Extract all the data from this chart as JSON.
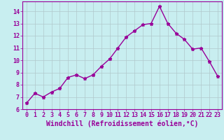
{
  "x": [
    0,
    1,
    2,
    3,
    4,
    5,
    6,
    7,
    8,
    9,
    10,
    11,
    12,
    13,
    14,
    15,
    16,
    17,
    18,
    19,
    20,
    21,
    22,
    23
  ],
  "y": [
    6.5,
    7.3,
    7.0,
    7.4,
    7.7,
    8.6,
    8.8,
    8.5,
    8.8,
    9.5,
    10.1,
    11.0,
    11.9,
    12.4,
    12.9,
    13.0,
    14.4,
    13.0,
    12.2,
    11.7,
    10.9,
    11.0,
    9.9,
    8.7
  ],
  "line_color": "#990099",
  "marker": "*",
  "marker_size": 3.5,
  "bg_color": "#c8eef0",
  "grid_color": "#b0c8cc",
  "axis_label_color": "#990099",
  "tick_color": "#990099",
  "xlabel": "Windchill (Refroidissement éolien,°C)",
  "xlim": [
    -0.5,
    23.5
  ],
  "ylim": [
    6,
    14.8
  ],
  "yticks": [
    6,
    7,
    8,
    9,
    10,
    11,
    12,
    13,
    14
  ],
  "xticks": [
    0,
    1,
    2,
    3,
    4,
    5,
    6,
    7,
    8,
    9,
    10,
    11,
    12,
    13,
    14,
    15,
    16,
    17,
    18,
    19,
    20,
    21,
    22,
    23
  ],
  "tick_fontsize": 6.0,
  "xlabel_fontsize": 7.0,
  "linewidth": 1.0
}
